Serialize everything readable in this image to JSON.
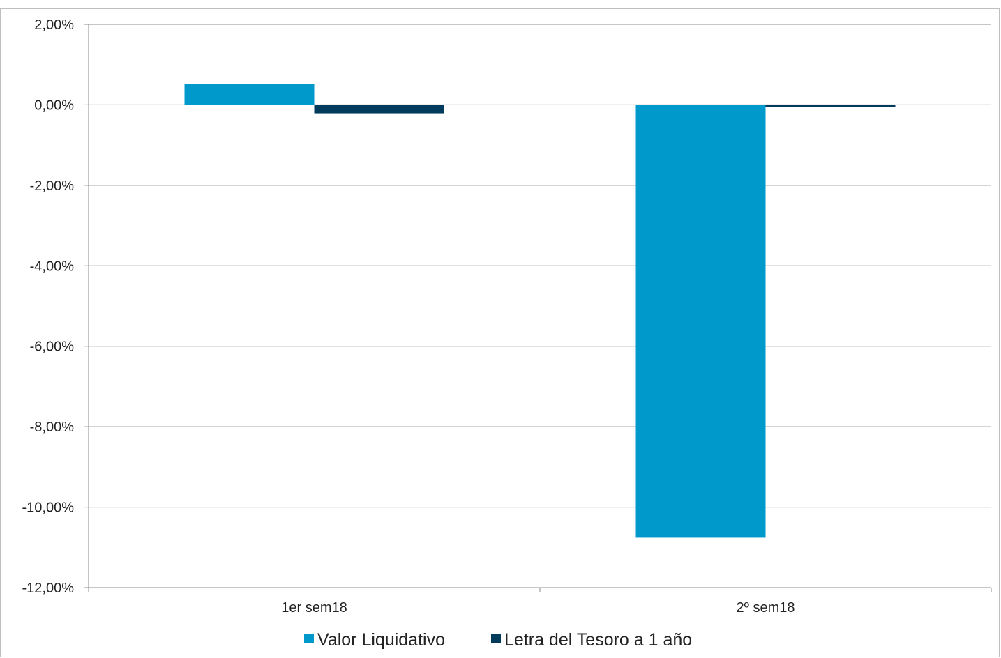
{
  "chart_data": {
    "type": "bar",
    "categories": [
      "1er sem18",
      "2º sem18"
    ],
    "series": [
      {
        "name": "Valor Liquidativo",
        "color": "#0099cc",
        "values": [
          0.51,
          -10.76
        ]
      },
      {
        "name": "Letra del Tesoro a 1 año",
        "color": "#003a5d",
        "values": [
          -0.21,
          -0.05
        ]
      }
    ],
    "ylim": [
      -12,
      2
    ],
    "yticks": [
      2,
      0,
      -2,
      -4,
      -6,
      -8,
      -10,
      -12
    ],
    "ytick_labels": [
      "2,00%",
      "0,00%",
      "-2,00%",
      "-4,00%",
      "-6,00%",
      "-8,00%",
      "-10,00%",
      "-12,00%"
    ],
    "grid": true,
    "legend_position": "bottom"
  }
}
